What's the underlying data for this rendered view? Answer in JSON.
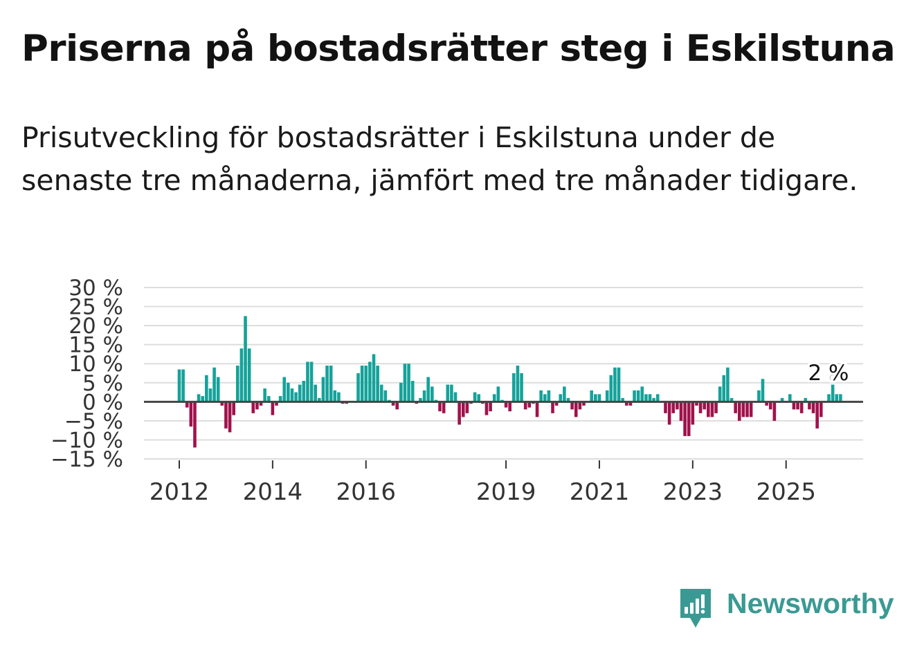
{
  "title": "Priserna på bostadsrätter steg i Eskilstuna",
  "subtitle": "Prisutveckling för bostadsrätter i Eskilstuna under de senaste tre månaderna, jämfört med tre månader tidigare.",
  "colors": {
    "positive": "#15a29a",
    "negative": "#a0124c",
    "zero_line": "#444444",
    "grid": "#dddddd",
    "logo": "#3a9a93"
  },
  "chart_data": {
    "type": "bar",
    "title": "Priserna på bostadsrätter steg i Eskilstuna",
    "xlabel": "",
    "ylabel": "",
    "ylim": [
      -15,
      30
    ],
    "y_ticks": [
      "30 %",
      "25 %",
      "20 %",
      "15 %",
      "10 %",
      "5 %",
      "0 %",
      "−5 %",
      "−10 %",
      "−15 %"
    ],
    "y_tick_values": [
      30,
      25,
      20,
      15,
      10,
      5,
      0,
      -5,
      -10,
      -15
    ],
    "x_ticks": [
      {
        "label": "2012",
        "index": 0
      },
      {
        "label": "2014",
        "index": 24
      },
      {
        "label": "2016",
        "index": 48
      },
      {
        "label": "2019",
        "index": 84
      },
      {
        "label": "2021",
        "index": 108
      },
      {
        "label": "2023",
        "index": 132
      },
      {
        "label": "2025",
        "index": 156
      }
    ],
    "period": "monthly, Jan 2012 – 2025",
    "values": [
      8.5,
      8.5,
      -1.5,
      -6.5,
      -12,
      2,
      1.5,
      7,
      3.5,
      9,
      6.5,
      -1,
      -7,
      -8,
      -3.5,
      9.5,
      14,
      22.5,
      14,
      -3,
      -2,
      -1,
      3.5,
      1.5,
      -3.5,
      -1,
      1.5,
      6.5,
      5,
      3.5,
      2.5,
      4.5,
      5.5,
      10.5,
      10.5,
      4.5,
      1,
      6.5,
      9.5,
      9.5,
      3,
      2.5,
      -0.5,
      -0.5,
      0,
      0,
      7.5,
      9.5,
      9.5,
      10.5,
      12.5,
      9.5,
      4.5,
      3,
      0.5,
      -1,
      -2,
      5,
      10,
      10,
      5.5,
      -0.5,
      1,
      3,
      6.5,
      4,
      0.5,
      -2.5,
      -3,
      4.5,
      4.5,
      2.5,
      -6,
      -4,
      -3,
      -0.5,
      2.5,
      2,
      -0.5,
      -3.5,
      -2.5,
      2,
      4,
      0.5,
      -1.5,
      -2.5,
      7.5,
      9.5,
      7.5,
      -2,
      -1.5,
      -0.5,
      -4,
      3,
      2,
      3,
      -3,
      -1,
      2,
      4,
      1,
      -2,
      -4,
      -2,
      -1,
      0,
      3,
      2,
      2,
      0,
      3,
      7,
      9,
      9,
      1,
      -1,
      -1,
      3,
      3,
      4,
      2,
      2,
      1,
      2,
      0,
      -3,
      -6,
      -3,
      -2,
      -5,
      -9,
      -9,
      -6,
      -1,
      -3,
      -2,
      -4,
      -4,
      -3,
      4,
      7,
      9,
      1,
      -3,
      -5,
      -4,
      -4,
      -4,
      0,
      3,
      6,
      -1,
      -2,
      -5,
      0,
      1,
      0,
      2,
      -2,
      -2,
      -3,
      1,
      -2,
      -3,
      -7,
      -4,
      0,
      2,
      4.5,
      2,
      2
    ],
    "annotation": {
      "text": "2 %",
      "value": 2
    }
  },
  "logo": {
    "text": "Newsworthy"
  }
}
